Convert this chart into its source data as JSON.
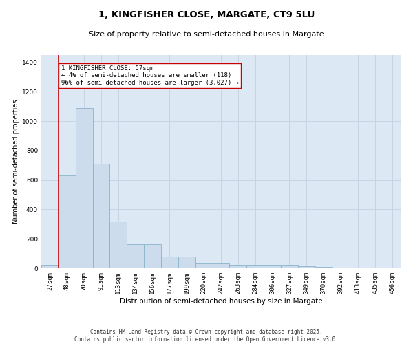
{
  "title": "1, KINGFISHER CLOSE, MARGATE, CT9 5LU",
  "subtitle": "Size of property relative to semi-detached houses in Margate",
  "xlabel": "Distribution of semi-detached houses by size in Margate",
  "ylabel": "Number of semi-detached properties",
  "categories": [
    "27sqm",
    "48sqm",
    "70sqm",
    "91sqm",
    "113sqm",
    "134sqm",
    "156sqm",
    "177sqm",
    "199sqm",
    "220sqm",
    "242sqm",
    "263sqm",
    "284sqm",
    "306sqm",
    "327sqm",
    "349sqm",
    "370sqm",
    "392sqm",
    "413sqm",
    "435sqm",
    "456sqm"
  ],
  "values": [
    25,
    630,
    1090,
    710,
    320,
    165,
    165,
    80,
    80,
    38,
    38,
    22,
    22,
    22,
    22,
    12,
    8,
    5,
    3,
    2,
    5
  ],
  "bar_color": "#ccdcec",
  "bar_edge_color": "#8ab4cc",
  "bar_linewidth": 0.6,
  "vline_x": 0.5,
  "vline_color": "#cc0000",
  "annotation_line1": "1 KINGFISHER CLOSE: 57sqm",
  "annotation_line2": "← 4% of semi-detached houses are smaller (118)",
  "annotation_line3": "96% of semi-detached houses are larger (3,027) →",
  "annotation_box_color": "#ffffff",
  "annotation_box_edge": "#cc0000",
  "ylim": [
    0,
    1450
  ],
  "yticks": [
    0,
    200,
    400,
    600,
    800,
    1000,
    1200,
    1400
  ],
  "grid_color": "#c8d4e4",
  "bg_color": "#dce8f4",
  "footer_line1": "Contains HM Land Registry data © Crown copyright and database right 2025.",
  "footer_line2": "Contains public sector information licensed under the Open Government Licence v3.0.",
  "title_fontsize": 9.5,
  "subtitle_fontsize": 8.0,
  "xlabel_fontsize": 7.5,
  "ylabel_fontsize": 7.0,
  "tick_fontsize": 6.5,
  "annotation_fontsize": 6.5,
  "footer_fontsize": 5.5
}
